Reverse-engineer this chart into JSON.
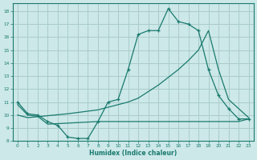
{
  "xlabel": "Humidex (Indice chaleur)",
  "bg_color": "#cce8e8",
  "grid_color": "#aacccc",
  "line_color": "#1a7a6e",
  "xlim": [
    -0.5,
    23.5
  ],
  "ylim": [
    8,
    18.6
  ],
  "yticks": [
    8,
    9,
    10,
    11,
    12,
    13,
    14,
    15,
    16,
    17,
    18
  ],
  "xticks": [
    0,
    1,
    2,
    3,
    4,
    5,
    6,
    7,
    8,
    9,
    10,
    11,
    12,
    13,
    14,
    15,
    16,
    17,
    18,
    19,
    20,
    21,
    22,
    23
  ],
  "line1_x": [
    0,
    1,
    2,
    3,
    4,
    5,
    6,
    7,
    8,
    9,
    10,
    11,
    12,
    13,
    14,
    15,
    16,
    17,
    18,
    19,
    20,
    21,
    22,
    23
  ],
  "line1_y": [
    11.0,
    10.1,
    10.0,
    9.5,
    9.2,
    8.3,
    8.2,
    8.2,
    9.5,
    11.0,
    11.2,
    13.5,
    16.2,
    16.5,
    16.5,
    18.2,
    17.2,
    17.0,
    16.5,
    13.5,
    11.5,
    10.5,
    9.7,
    9.7
  ],
  "line2_x": [
    0,
    1,
    5,
    8,
    9,
    10,
    11,
    12,
    13,
    14,
    15,
    16,
    17,
    18,
    19,
    20,
    21,
    22,
    23
  ],
  "line2_y": [
    10.0,
    9.8,
    10.1,
    10.4,
    10.6,
    10.8,
    11.0,
    11.3,
    11.8,
    12.3,
    12.9,
    13.5,
    14.2,
    15.0,
    16.5,
    13.5,
    11.2,
    10.5,
    9.8
  ],
  "line3_x": [
    0,
    1,
    2,
    3,
    8,
    9,
    10,
    14,
    19,
    20,
    21,
    22,
    23
  ],
  "line3_y": [
    10.8,
    10.0,
    9.9,
    9.3,
    9.5,
    9.5,
    9.5,
    9.5,
    9.5,
    9.5,
    9.5,
    9.5,
    9.7
  ]
}
